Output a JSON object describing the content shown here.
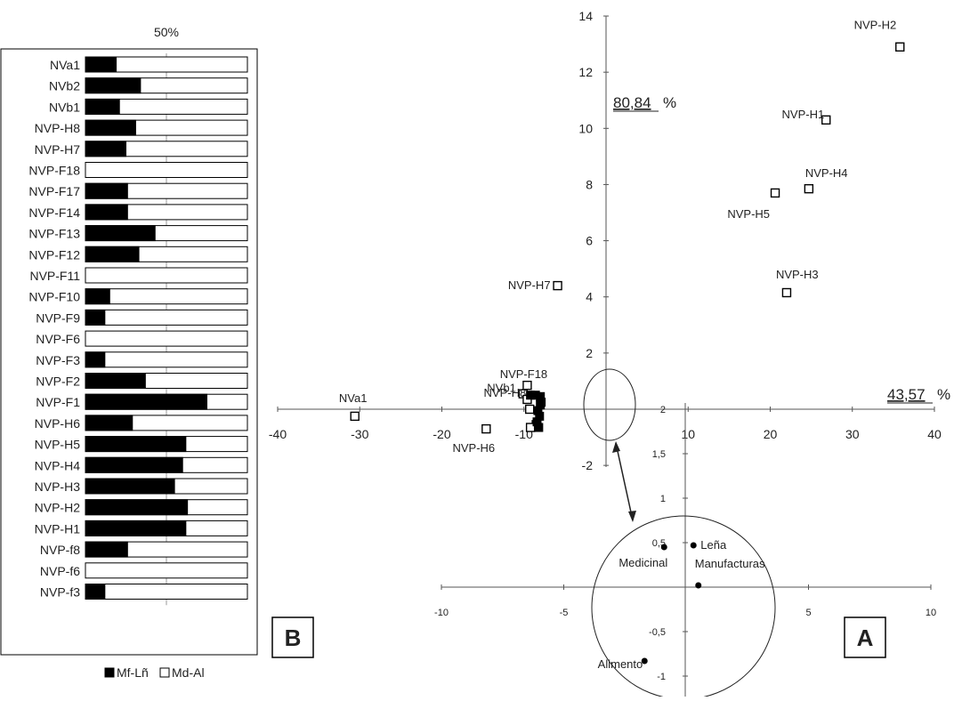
{
  "panel_b": {
    "label": "B",
    "top_label": "50%",
    "legend": [
      "Mf-Lñ",
      "Md-Al"
    ],
    "legend_colors": [
      "#000000",
      "#ffffff"
    ]
  },
  "panel_a": {
    "label": "A",
    "pct_y": "80,84",
    "pct_x": "43,57",
    "pct_sign": "%"
  },
  "chart_data": [
    {
      "type": "bar",
      "orientation": "horizontal",
      "stacked": true,
      "percent": true,
      "categories": [
        "NVa1",
        "NVb2",
        "NVb1",
        "NVP-H8",
        "NVP-H7",
        "NVP-F18",
        "NVP-F17",
        "NVP-F14",
        "NVP-F13",
        "NVP-F12",
        "NVP-F11",
        "NVP-F10",
        "NVP-F9",
        "NVP-F6",
        "NVP-F3",
        "NVP-F2",
        "NVP-F1",
        "NVP-H6",
        "NVP-H5",
        "NVP-H4",
        "NVP-H3",
        "NVP-H2",
        "NVP-H1",
        "NVP-f8",
        "NVP-f6",
        "NVP-f3"
      ],
      "series": [
        {
          "name": "Mf-Lñ",
          "values": [
            19,
            34,
            21,
            31,
            25,
            0,
            26,
            26,
            43,
            33,
            0,
            15,
            12,
            0,
            12,
            37,
            75,
            29,
            62,
            60,
            55,
            63,
            62,
            26,
            0,
            12
          ]
        },
        {
          "name": "Md-Al",
          "values": [
            81,
            66,
            79,
            69,
            75,
            100,
            74,
            74,
            57,
            67,
            100,
            85,
            88,
            100,
            88,
            63,
            25,
            71,
            38,
            40,
            45,
            37,
            38,
            74,
            100,
            88
          ]
        }
      ],
      "xlim": [
        0,
        100
      ],
      "legend": "bottom"
    },
    {
      "type": "scatter",
      "xlim": [
        -40,
        40
      ],
      "ylim": [
        -2,
        14
      ],
      "xticks": [
        "-40",
        "-30",
        "-20",
        "-10",
        "10",
        "20",
        "30",
        "40"
      ],
      "yticks": [
        "-2",
        "2",
        "4",
        "6",
        "8",
        "10",
        "12",
        "14"
      ],
      "points": [
        {
          "label": "NVP-H2",
          "x": 35.8,
          "y": 12.9
        },
        {
          "label": "NVP-H1",
          "x": 26.8,
          "y": 10.3
        },
        {
          "label": "NVP-H4",
          "x": 24.7,
          "y": 7.85
        },
        {
          "label": "NVP-H5",
          "x": 20.6,
          "y": 7.7
        },
        {
          "label": "NVP-H3",
          "x": 22.0,
          "y": 4.15
        },
        {
          "label": "NVP-H7",
          "x": -5.9,
          "y": 4.4
        },
        {
          "label": "NVa1",
          "x": -30.6,
          "y": -0.25
        },
        {
          "label": "NVP-F18",
          "x": -9.6,
          "y": 0.85
        },
        {
          "label": "NVb1",
          "x": -10.1,
          "y": 0.55
        },
        {
          "label": "NVP-H8",
          "x": -9.3,
          "y": 0.0
        },
        {
          "label": "NVP-H6",
          "x": -14.6,
          "y": -0.7
        },
        {
          "label": "",
          "x": -9.6,
          "y": 0.35
        },
        {
          "label": "",
          "x": -8.5,
          "y": -0.55
        },
        {
          "label": "",
          "x": -9.2,
          "y": -0.65
        }
      ],
      "filled_points": [
        {
          "x": -9.2,
          "y": 0.5
        },
        {
          "x": -8.6,
          "y": 0.5
        },
        {
          "x": -8.0,
          "y": 0.45
        },
        {
          "x": -8.0,
          "y": 0.15
        },
        {
          "x": -8.3,
          "y": -0.05
        },
        {
          "x": -8.1,
          "y": -0.25
        },
        {
          "x": -8.4,
          "y": -0.45
        },
        {
          "x": -8.2,
          "y": -0.65
        },
        {
          "x": -7.9,
          "y": 0.25
        }
      ]
    },
    {
      "type": "scatter",
      "xlim": [
        -10,
        10
      ],
      "ylim": [
        -1,
        2
      ],
      "xticks": [
        "-10",
        "-5",
        "5",
        "10"
      ],
      "yticks": [
        "-1",
        "-0,5",
        "0,5",
        "1",
        "1,5",
        "2"
      ],
      "points": [
        {
          "label": "Leña",
          "x": 0.3,
          "y": 0.47
        },
        {
          "label": "Medicinal",
          "x": -0.9,
          "y": 0.45
        },
        {
          "label": "Manufacturas",
          "x": 0.5,
          "y": 0.02
        },
        {
          "label": "Alimento",
          "x": -1.7,
          "y": -0.83
        }
      ]
    }
  ]
}
